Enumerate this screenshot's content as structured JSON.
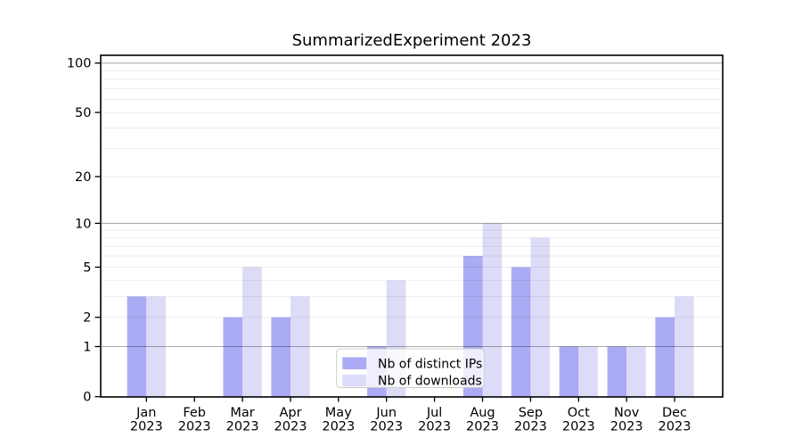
{
  "chart_data": {
    "type": "bar",
    "title": "SummarizedExperiment 2023",
    "categories": [
      "Jan 2023",
      "Feb 2023",
      "Mar 2023",
      "Apr 2023",
      "May 2023",
      "Jun 2023",
      "Jul 2023",
      "Aug 2023",
      "Sep 2023",
      "Oct 2023",
      "Nov 2023",
      "Dec 2023"
    ],
    "series": [
      {
        "name": "Nb of distinct IPs",
        "color": "#aaaaf5",
        "values": [
          3,
          0,
          2,
          2,
          0,
          1,
          0,
          6,
          5,
          1,
          1,
          2
        ]
      },
      {
        "name": "Nb of downloads",
        "color": "#dcdcf9",
        "values": [
          3,
          0,
          5,
          3,
          0,
          4,
          0,
          10,
          8,
          1,
          1,
          3
        ]
      }
    ],
    "xlabel": "",
    "ylabel": "",
    "yscale": "log10(1+y)",
    "ytick_values": [
      0,
      1,
      2,
      5,
      10,
      20,
      50,
      100
    ],
    "ytick_labels": [
      "0",
      "1",
      "2",
      "5",
      "10",
      "20",
      "50",
      "100"
    ],
    "ylim": [
      0,
      110
    ],
    "grid": "horizontal; faint minors at 2-9 and 20-90, darker majors at 1, 10, 100",
    "legend_position": "bottom-center",
    "colors": {
      "spine": "#000000",
      "grid_major": "rgba(0,0,0,0.33)",
      "grid_minor": "rgba(0,0,0,0.08)",
      "legend_border": "#cccccc",
      "legend_background": "rgba(255,255,255,0.8)"
    }
  }
}
